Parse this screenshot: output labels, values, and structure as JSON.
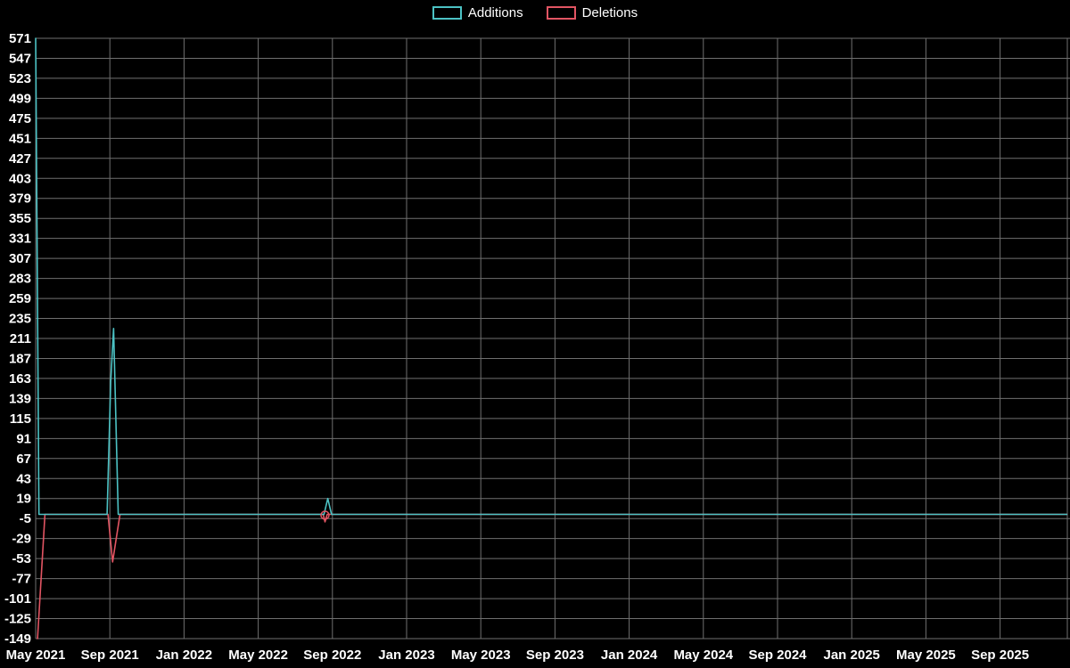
{
  "chart_data": {
    "type": "line",
    "title": "",
    "grid": true,
    "legend_position": "top-center",
    "background_color": "#000000",
    "grid_color": "#6f6f6f",
    "text_color": "#ffffff",
    "x_axis": {
      "unit": "months since May 2021",
      "tick_months": [
        0,
        4,
        8,
        12,
        16,
        20,
        24,
        28,
        32,
        36,
        40,
        44,
        48,
        52
      ],
      "tick_labels": [
        "May 2021",
        "Sep 2021",
        "Jan 2022",
        "May 2022",
        "Sep 2022",
        "Jan 2023",
        "May 2023",
        "Sep 2023",
        "Jan 2024",
        "May 2024",
        "Sep 2024",
        "Jan 2025",
        "May 2025",
        "Sep 2025"
      ],
      "max_month": 55.7
    },
    "y_axis": {
      "ticks": [
        571,
        547,
        523,
        499,
        475,
        451,
        427,
        403,
        379,
        355,
        331,
        307,
        283,
        259,
        235,
        211,
        187,
        163,
        139,
        115,
        91,
        67,
        43,
        19,
        -5,
        -29,
        -53,
        -77,
        -101,
        -125,
        -149
      ],
      "min": -149,
      "max": 571
    },
    "series": [
      {
        "name": "Additions",
        "color": "#4cc2c4",
        "points": [
          [
            0,
            571
          ],
          [
            0.18,
            0
          ],
          [
            3.85,
            0
          ],
          [
            4.05,
            160
          ],
          [
            4.2,
            223
          ],
          [
            4.45,
            0
          ],
          [
            15.55,
            0
          ],
          [
            15.75,
            19
          ],
          [
            15.95,
            0
          ],
          [
            55.6,
            0
          ]
        ]
      },
      {
        "name": "Deletions",
        "color": "#e25563",
        "points": [
          [
            0.1,
            -149
          ],
          [
            0.5,
            0
          ],
          [
            3.9,
            0
          ],
          [
            4.15,
            -57
          ],
          [
            4.35,
            -28
          ],
          [
            4.55,
            0
          ],
          [
            15.5,
            0
          ],
          [
            15.6,
            -9
          ],
          [
            15.72,
            0
          ],
          [
            55.6,
            0
          ]
        ]
      }
    ],
    "markers": [
      {
        "series": "Deletions",
        "month": 15.6,
        "value": -1,
        "radius": 4.5
      }
    ]
  }
}
